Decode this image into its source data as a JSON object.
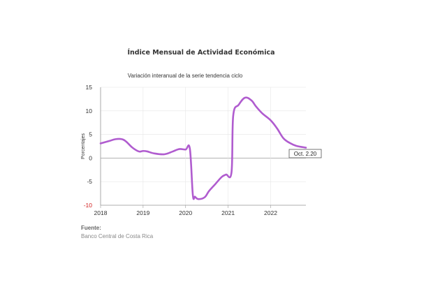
{
  "title": "Índice Mensual de  Actividad Económica",
  "subtitle": "Variación interanual de la serie tendencia ciclo",
  "source": {
    "label": "Fuente:",
    "text": "Banco Central de Costa Rica"
  },
  "tooltip": "Oct. 2.20",
  "colors": {
    "line": "#b05ccf",
    "grid": "#e6e6e6",
    "axis": "#999999",
    "min_tick": "#d21f1f"
  },
  "chart_data": {
    "type": "line",
    "title": "Índice Mensual de  Actividad Económica",
    "subtitle": "Variación interanual de la serie tendencia ciclo",
    "xlabel": "",
    "ylabel": "Porcentajes",
    "ylim": [
      -10,
      15
    ],
    "yticks": [
      15,
      10,
      5,
      0,
      -5,
      -10
    ],
    "ytick_labels": [
      "15",
      "10",
      "5",
      "0",
      "-5",
      "-10"
    ],
    "xlim": [
      2018,
      2022.83
    ],
    "xticks": [
      2018,
      2019,
      2020,
      2021,
      2022
    ],
    "xtick_labels": [
      "2018",
      "2019",
      "2020",
      "2021",
      "2022"
    ],
    "grid": true,
    "series": [
      {
        "name": "",
        "x": [
          2018.0,
          2018.2,
          2018.35,
          2018.5,
          2018.6,
          2018.75,
          2018.9,
          2019.0,
          2019.1,
          2019.25,
          2019.5,
          2019.7,
          2019.85,
          2020.0,
          2020.1,
          2020.17,
          2020.22,
          2020.3,
          2020.45,
          2020.55,
          2020.7,
          2020.85,
          2020.95,
          2021.08,
          2021.12,
          2021.25,
          2021.4,
          2021.55,
          2021.65,
          2021.8,
          2022.0,
          2022.15,
          2022.3,
          2022.45,
          2022.6,
          2022.83
        ],
        "values": [
          3.1,
          3.6,
          4.0,
          4.0,
          3.5,
          2.2,
          1.4,
          1.5,
          1.4,
          1.0,
          0.8,
          1.4,
          1.9,
          1.8,
          2.0,
          -7.8,
          -8.2,
          -8.7,
          -8.3,
          -7.0,
          -5.5,
          -4.0,
          -3.5,
          -3.0,
          9.0,
          11.3,
          12.8,
          12.2,
          11.0,
          9.5,
          8.0,
          6.3,
          4.2,
          3.2,
          2.6,
          2.2
        ]
      }
    ]
  }
}
